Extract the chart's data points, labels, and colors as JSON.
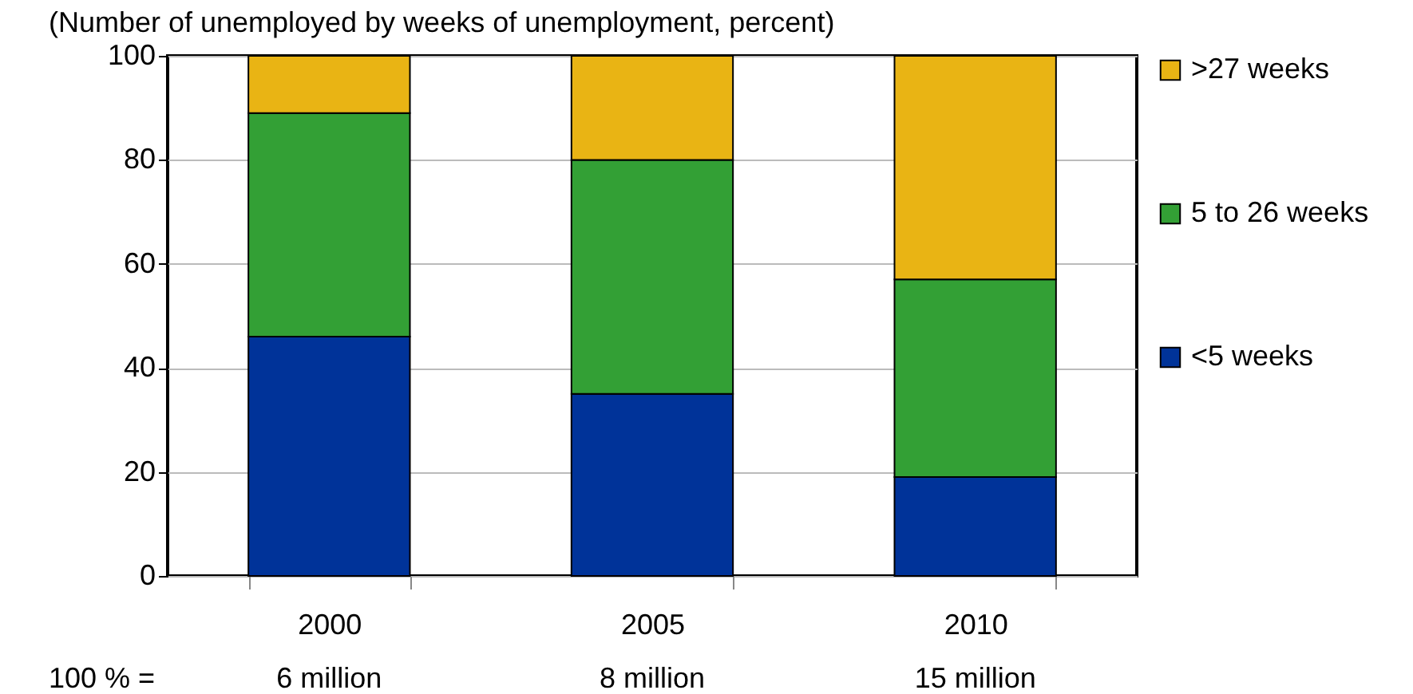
{
  "chart_data": {
    "type": "bar",
    "stacked": true,
    "title": "(Number of unemployed by weeks of unemployment, percent)",
    "categories": [
      "2000",
      "2005",
      "2010"
    ],
    "series": [
      {
        "name": "<5 weeks",
        "color": "#003399",
        "values": [
          46,
          35,
          19
        ]
      },
      {
        "name": "5 to 26 weeks",
        "color": "#33a035",
        "values": [
          43,
          45,
          38
        ]
      },
      {
        "name": ">27 weeks",
        "color": "#e9b414",
        "values": [
          11,
          20,
          43
        ]
      }
    ],
    "ylim": [
      0,
      100
    ],
    "yticks": [
      0,
      20,
      40,
      60,
      80,
      100
    ],
    "grid": "y",
    "legend": "right",
    "annotations": [
      "100 % =",
      "6 million",
      "8 million",
      "15 million"
    ]
  }
}
